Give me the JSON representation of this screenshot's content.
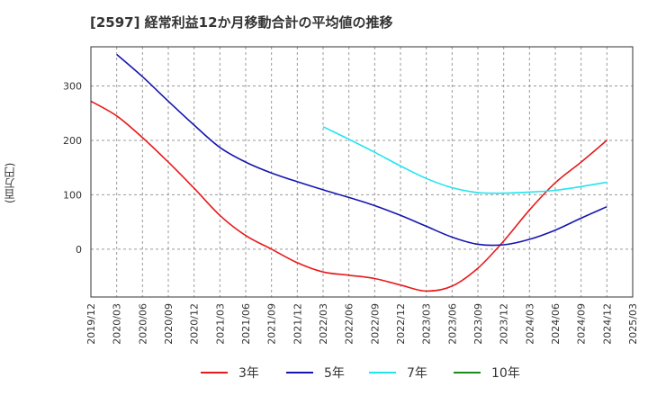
{
  "chart_data": {
    "type": "line",
    "title": "[2597]  経常利益12か月移動合計の平均値の推移",
    "ylabel": "(百万円)",
    "xlabel": "",
    "ylim": [
      -88,
      372
    ],
    "yticks": [
      0,
      100,
      200,
      300
    ],
    "x_ticks": [
      "2019/12",
      "2020/03",
      "2020/06",
      "2020/09",
      "2020/12",
      "2021/03",
      "2021/06",
      "2021/09",
      "2021/12",
      "2022/03",
      "2022/06",
      "2022/09",
      "2022/12",
      "2023/03",
      "2023/06",
      "2023/09",
      "2023/12",
      "2024/03",
      "2024/06",
      "2024/09",
      "2024/12",
      "2025/03"
    ],
    "grid": true,
    "legend_position": "bottom",
    "series": [
      {
        "name": "3年",
        "color": "#e8191a",
        "x": [
          "2019/12",
          "2020/03",
          "2020/06",
          "2020/09",
          "2020/12",
          "2021/03",
          "2021/06",
          "2021/09",
          "2021/12",
          "2022/03",
          "2022/06",
          "2022/09",
          "2022/12",
          "2023/03",
          "2023/06",
          "2023/09",
          "2023/12",
          "2024/03",
          "2024/06",
          "2024/09",
          "2024/12"
        ],
        "values": [
          272,
          245,
          205,
          160,
          112,
          62,
          25,
          0,
          -25,
          -42,
          -48,
          -54,
          -66,
          -77,
          -68,
          -35,
          15,
          72,
          122,
          160,
          200
        ]
      },
      {
        "name": "5年",
        "color": "#1515b0",
        "x": [
          "2020/03",
          "2020/06",
          "2020/09",
          "2020/12",
          "2021/03",
          "2021/06",
          "2021/09",
          "2021/12",
          "2022/03",
          "2022/06",
          "2022/09",
          "2022/12",
          "2023/03",
          "2023/06",
          "2023/09",
          "2023/12",
          "2024/03",
          "2024/06",
          "2024/09",
          "2024/12"
        ],
        "values": [
          358,
          317,
          272,
          228,
          187,
          160,
          140,
          124,
          109,
          95,
          80,
          62,
          42,
          22,
          9,
          8,
          18,
          35,
          57,
          78
        ]
      },
      {
        "name": "7年",
        "color": "#21e5ee",
        "x": [
          "2022/03",
          "2022/06",
          "2022/09",
          "2022/12",
          "2023/03",
          "2023/06",
          "2023/09",
          "2023/12",
          "2024/03",
          "2024/06",
          "2024/09",
          "2024/12"
        ],
        "values": [
          225,
          202,
          178,
          153,
          130,
          113,
          104,
          103,
          105,
          108,
          115,
          123
        ]
      },
      {
        "name": "10年",
        "color": "#1b8a1b",
        "x": [],
        "values": []
      }
    ]
  }
}
